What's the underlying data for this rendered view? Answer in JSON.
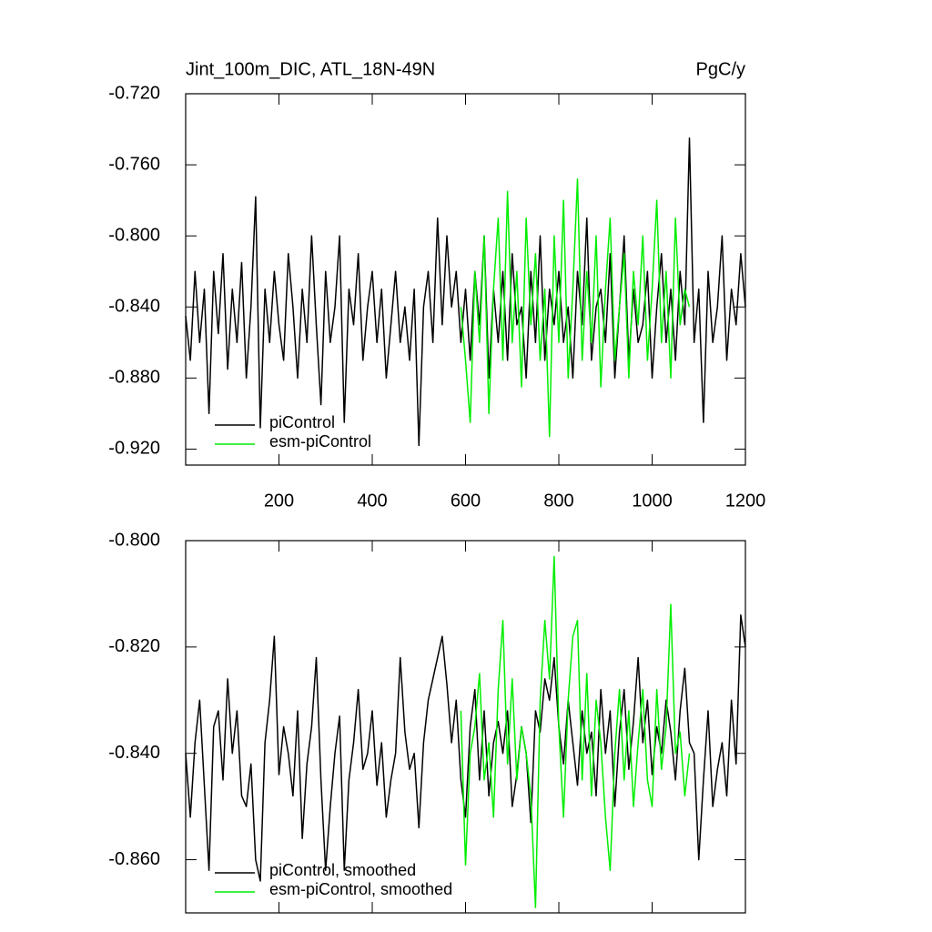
{
  "chart_data": [
    {
      "type": "line",
      "title": "Jint_100m_DIC, ATL_18N-49N",
      "units": "PgC/y",
      "x": [
        0,
        10,
        20,
        30,
        40,
        50,
        60,
        70,
        80,
        90,
        100,
        110,
        120,
        130,
        140,
        150,
        160,
        170,
        180,
        190,
        200,
        210,
        220,
        230,
        240,
        250,
        260,
        270,
        280,
        290,
        300,
        310,
        320,
        330,
        340,
        350,
        360,
        370,
        380,
        390,
        400,
        410,
        420,
        430,
        440,
        450,
        460,
        470,
        480,
        490,
        500,
        510,
        520,
        530,
        540,
        550,
        560,
        570,
        580,
        590,
        600,
        610,
        620,
        630,
        640,
        650,
        660,
        670,
        680,
        690,
        700,
        710,
        720,
        730,
        740,
        750,
        760,
        770,
        780,
        790,
        800,
        810,
        820,
        830,
        840,
        850,
        860,
        870,
        880,
        890,
        900,
        910,
        920,
        930,
        940,
        950,
        960,
        970,
        980,
        990,
        1000,
        1010,
        1020,
        1030,
        1040,
        1050,
        1060,
        1070,
        1080,
        1090,
        1100,
        1110,
        1120,
        1130,
        1140,
        1150,
        1160,
        1170,
        1180,
        1190,
        1200
      ],
      "series": [
        {
          "name": "piControl",
          "color": "#000000",
          "values": [
            -0.845,
            -0.87,
            -0.82,
            -0.86,
            -0.83,
            -0.9,
            -0.82,
            -0.855,
            -0.81,
            -0.875,
            -0.83,
            -0.86,
            -0.815,
            -0.88,
            -0.84,
            -0.778,
            -0.908,
            -0.83,
            -0.86,
            -0.82,
            -0.85,
            -0.87,
            -0.81,
            -0.84,
            -0.88,
            -0.83,
            -0.86,
            -0.8,
            -0.85,
            -0.895,
            -0.82,
            -0.86,
            -0.84,
            -0.8,
            -0.905,
            -0.83,
            -0.85,
            -0.81,
            -0.87,
            -0.84,
            -0.82,
            -0.86,
            -0.83,
            -0.88,
            -0.85,
            -0.82,
            -0.86,
            -0.84,
            -0.87,
            -0.83,
            -0.918,
            -0.84,
            -0.82,
            -0.86,
            -0.79,
            -0.85,
            -0.8,
            -0.84,
            -0.82,
            -0.86,
            -0.83,
            -0.87,
            -0.82,
            -0.85,
            -0.8,
            -0.88,
            -0.83,
            -0.86,
            -0.82,
            -0.87,
            -0.81,
            -0.85,
            -0.84,
            -0.88,
            -0.82,
            -0.86,
            -0.8,
            -0.87,
            -0.83,
            -0.85,
            -0.82,
            -0.86,
            -0.84,
            -0.88,
            -0.82,
            -0.85,
            -0.79,
            -0.87,
            -0.84,
            -0.83,
            -0.86,
            -0.81,
            -0.88,
            -0.84,
            -0.8,
            -0.87,
            -0.83,
            -0.86,
            -0.85,
            -0.82,
            -0.88,
            -0.84,
            -0.81,
            -0.86,
            -0.83,
            -0.87,
            -0.82,
            -0.85,
            -0.745,
            -0.86,
            -0.83,
            -0.905,
            -0.82,
            -0.86,
            -0.84,
            -0.8,
            -0.87,
            -0.83,
            -0.85,
            -0.81,
            -0.84
          ]
        },
        {
          "name": "esm-piControl",
          "color": "#00ee00",
          "values": [
            null,
            null,
            null,
            null,
            null,
            null,
            null,
            null,
            null,
            null,
            null,
            null,
            null,
            null,
            null,
            null,
            null,
            null,
            null,
            null,
            null,
            null,
            null,
            null,
            null,
            null,
            null,
            null,
            null,
            null,
            null,
            null,
            null,
            null,
            null,
            null,
            null,
            null,
            null,
            null,
            null,
            null,
            null,
            null,
            null,
            null,
            null,
            null,
            null,
            null,
            null,
            null,
            null,
            null,
            null,
            null,
            null,
            null,
            null,
            -0.84,
            -0.87,
            -0.905,
            -0.82,
            -0.86,
            -0.8,
            -0.9,
            -0.83,
            -0.79,
            -0.87,
            -0.775,
            -0.86,
            -0.82,
            -0.885,
            -0.79,
            -0.85,
            -0.81,
            -0.87,
            -0.83,
            -0.913,
            -0.8,
            -0.86,
            -0.78,
            -0.88,
            -0.83,
            -0.768,
            -0.87,
            -0.82,
            -0.86,
            -0.8,
            -0.885,
            -0.83,
            -0.79,
            -0.87,
            -0.84,
            -0.81,
            -0.88,
            -0.82,
            -0.85,
            -0.8,
            -0.87,
            -0.83,
            -0.78,
            -0.86,
            -0.82,
            -0.88,
            -0.79,
            -0.85,
            -0.83,
            -0.84,
            null,
            null,
            null,
            null,
            null,
            null,
            null,
            null,
            null,
            null,
            null,
            null
          ]
        }
      ],
      "xlim": [
        0,
        1200
      ],
      "xticks": [
        200,
        400,
        600,
        800,
        1000,
        1200
      ],
      "show_xtick_labels": true,
      "ylim": [
        -0.929,
        -0.72
      ],
      "yticks": [
        {
          "value": -0.72,
          "label": "-0.720"
        },
        {
          "value": -0.76,
          "label": "-0.760"
        },
        {
          "value": -0.8,
          "label": "-0.800"
        },
        {
          "value": -0.84,
          "label": "-0.840"
        },
        {
          "value": -0.88,
          "label": "-0.880"
        },
        {
          "value": -0.92,
          "label": "-0.920"
        }
      ],
      "legend": "lower-left"
    },
    {
      "type": "line",
      "x": [
        0,
        10,
        20,
        30,
        40,
        50,
        60,
        70,
        80,
        90,
        100,
        110,
        120,
        130,
        140,
        150,
        160,
        170,
        180,
        190,
        200,
        210,
        220,
        230,
        240,
        250,
        260,
        270,
        280,
        290,
        300,
        310,
        320,
        330,
        340,
        350,
        360,
        370,
        380,
        390,
        400,
        410,
        420,
        430,
        440,
        450,
        460,
        470,
        480,
        490,
        500,
        510,
        520,
        530,
        540,
        550,
        560,
        570,
        580,
        590,
        600,
        610,
        620,
        630,
        640,
        650,
        660,
        670,
        680,
        690,
        700,
        710,
        720,
        730,
        740,
        750,
        760,
        770,
        780,
        790,
        800,
        810,
        820,
        830,
        840,
        850,
        860,
        870,
        880,
        890,
        900,
        910,
        920,
        930,
        940,
        950,
        960,
        970,
        980,
        990,
        1000,
        1010,
        1020,
        1030,
        1040,
        1050,
        1060,
        1070,
        1080,
        1090,
        1100,
        1110,
        1120,
        1130,
        1140,
        1150,
        1160,
        1170,
        1180,
        1190,
        1200
      ],
      "series": [
        {
          "name": "piControl, smoothed",
          "color": "#000000",
          "values": [
            -0.84,
            -0.852,
            -0.838,
            -0.83,
            -0.846,
            -0.862,
            -0.835,
            -0.832,
            -0.845,
            -0.826,
            -0.84,
            -0.832,
            -0.848,
            -0.85,
            -0.842,
            -0.86,
            -0.864,
            -0.838,
            -0.83,
            -0.818,
            -0.844,
            -0.835,
            -0.84,
            -0.848,
            -0.832,
            -0.856,
            -0.842,
            -0.835,
            -0.822,
            -0.845,
            -0.862,
            -0.85,
            -0.84,
            -0.833,
            -0.862,
            -0.845,
            -0.838,
            -0.828,
            -0.843,
            -0.84,
            -0.832,
            -0.846,
            -0.838,
            -0.852,
            -0.845,
            -0.84,
            -0.822,
            -0.836,
            -0.843,
            -0.84,
            -0.854,
            -0.838,
            -0.83,
            -0.826,
            -0.822,
            -0.818,
            -0.827,
            -0.838,
            -0.83,
            -0.845,
            -0.852,
            -0.835,
            -0.828,
            -0.845,
            -0.832,
            -0.848,
            -0.838,
            -0.834,
            -0.84,
            -0.832,
            -0.85,
            -0.844,
            -0.835,
            -0.84,
            -0.853,
            -0.832,
            -0.836,
            -0.826,
            -0.83,
            -0.822,
            -0.835,
            -0.842,
            -0.83,
            -0.838,
            -0.846,
            -0.832,
            -0.84,
            -0.836,
            -0.848,
            -0.828,
            -0.84,
            -0.832,
            -0.85,
            -0.836,
            -0.828,
            -0.843,
            -0.834,
            -0.822,
            -0.838,
            -0.83,
            -0.844,
            -0.835,
            -0.84,
            -0.83,
            -0.836,
            -0.845,
            -0.832,
            -0.824,
            -0.838,
            -0.84,
            -0.86,
            -0.845,
            -0.832,
            -0.85,
            -0.843,
            -0.838,
            -0.848,
            -0.83,
            -0.842,
            -0.814,
            -0.82
          ]
        },
        {
          "name": "esm-piControl, smoothed",
          "color": "#00ee00",
          "values": [
            null,
            null,
            null,
            null,
            null,
            null,
            null,
            null,
            null,
            null,
            null,
            null,
            null,
            null,
            null,
            null,
            null,
            null,
            null,
            null,
            null,
            null,
            null,
            null,
            null,
            null,
            null,
            null,
            null,
            null,
            null,
            null,
            null,
            null,
            null,
            null,
            null,
            null,
            null,
            null,
            null,
            null,
            null,
            null,
            null,
            null,
            null,
            null,
            null,
            null,
            null,
            null,
            null,
            null,
            null,
            null,
            null,
            null,
            null,
            -0.832,
            -0.861,
            -0.84,
            -0.835,
            -0.825,
            -0.845,
            -0.838,
            -0.852,
            -0.828,
            -0.815,
            -0.842,
            -0.826,
            -0.845,
            -0.835,
            -0.84,
            -0.848,
            -0.869,
            -0.83,
            -0.815,
            -0.826,
            -0.803,
            -0.835,
            -0.852,
            -0.83,
            -0.818,
            -0.815,
            -0.845,
            -0.825,
            -0.848,
            -0.83,
            -0.838,
            -0.852,
            -0.862,
            -0.84,
            -0.828,
            -0.845,
            -0.832,
            -0.85,
            -0.838,
            -0.828,
            -0.845,
            -0.85,
            -0.828,
            -0.843,
            -0.835,
            -0.812,
            -0.84,
            -0.836,
            -0.848,
            -0.84,
            null,
            null,
            null,
            null,
            null,
            null,
            null,
            null,
            null,
            null,
            null,
            null
          ]
        }
      ],
      "xlim": [
        0,
        1200
      ],
      "xticks": [
        200,
        400,
        600,
        800,
        1000,
        1200
      ],
      "show_xtick_labels": false,
      "ylim": [
        -0.87,
        -0.8
      ],
      "yticks": [
        {
          "value": -0.8,
          "label": "-0.800"
        },
        {
          "value": -0.82,
          "label": "-0.820"
        },
        {
          "value": -0.84,
          "label": "-0.840"
        },
        {
          "value": -0.86,
          "label": "-0.860"
        }
      ],
      "legend": "lower-left"
    }
  ]
}
